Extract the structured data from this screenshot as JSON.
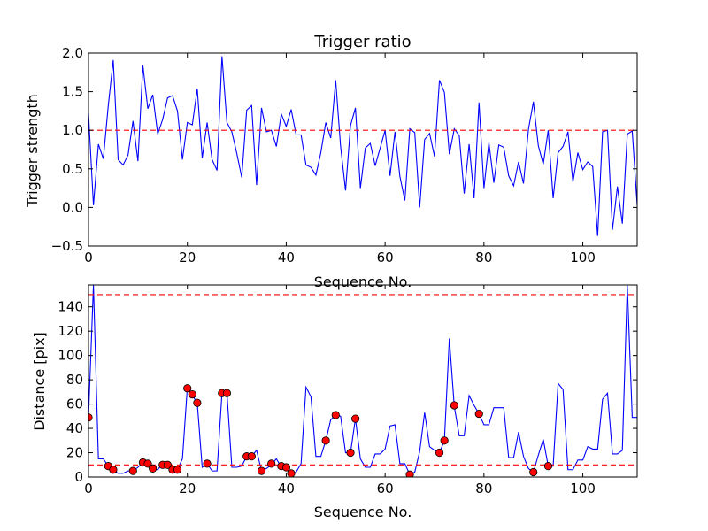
{
  "chart_data": [
    {
      "type": "line",
      "title": "Trigger ratio",
      "xlabel": "Sequence No.",
      "ylabel": "Trigger strength",
      "xlim": [
        0,
        111
      ],
      "ylim": [
        -0.5,
        2.0
      ],
      "xticks": [
        0,
        20,
        40,
        60,
        80,
        100
      ],
      "yticks": [
        -0.5,
        0.0,
        0.5,
        1.0,
        1.5,
        2.0
      ],
      "xtick_labels": [
        "0",
        "20",
        "40",
        "60",
        "80",
        "100"
      ],
      "ytick_labels": [
        "−0.5",
        "0.0",
        "0.5",
        "1.0",
        "1.5",
        "2.0"
      ],
      "grid": false,
      "series": [
        {
          "color": "#0000ff",
          "values": [
            1.22,
            0.03,
            0.82,
            0.63,
            1.32,
            1.91,
            0.62,
            0.55,
            0.68,
            1.12,
            0.6,
            1.84,
            1.28,
            1.46,
            0.95,
            1.14,
            1.42,
            1.45,
            1.25,
            0.62,
            1.1,
            1.07,
            1.54,
            0.64,
            1.1,
            0.62,
            0.48,
            1.96,
            1.1,
            0.98,
            0.7,
            0.39,
            1.26,
            1.32,
            0.29,
            1.29,
            0.98,
            1.0,
            0.79,
            1.21,
            1.05,
            1.27,
            0.94,
            0.94,
            0.55,
            0.52,
            0.42,
            0.71,
            1.1,
            0.9,
            1.65,
            0.79,
            0.22,
            1.06,
            1.29,
            0.25,
            0.77,
            0.83,
            0.54,
            0.77,
            1.0,
            0.41,
            0.98,
            0.4,
            0.09,
            1.02,
            0.97,
            0.0,
            0.88,
            0.96,
            0.66,
            1.65,
            1.49,
            0.69,
            1.02,
            0.93,
            0.18,
            0.82,
            0.12,
            1.36,
            0.25,
            0.84,
            0.32,
            0.81,
            0.78,
            0.41,
            0.28,
            0.59,
            0.31,
            1.01,
            1.37,
            0.8,
            0.56,
            1.0,
            0.12,
            0.71,
            0.79,
            0.98,
            0.33,
            0.71,
            0.49,
            0.59,
            0.53,
            -0.37,
            0.98,
            1.0,
            -0.29,
            0.27,
            -0.21,
            0.95,
            0.99,
            0.03
          ]
        }
      ],
      "reference_lines": [
        {
          "y": 1.0,
          "color": "#ff0000",
          "style": "dashed"
        }
      ]
    },
    {
      "type": "line",
      "title": "",
      "xlabel": "Sequence No.",
      "ylabel": "Distance [pix]",
      "xlim": [
        0,
        111
      ],
      "ylim": [
        0,
        158
      ],
      "xticks": [
        0,
        20,
        40,
        60,
        80,
        100
      ],
      "yticks": [
        0,
        20,
        40,
        60,
        80,
        100,
        120,
        140
      ],
      "xtick_labels": [
        "0",
        "20",
        "40",
        "60",
        "80",
        "100"
      ],
      "ytick_labels": [
        "0",
        "20",
        "40",
        "60",
        "80",
        "100",
        "120",
        "140"
      ],
      "grid": false,
      "series": [
        {
          "color": "#0000ff",
          "values": [
            49,
            158,
            15,
            15,
            9,
            6,
            3,
            3,
            5,
            5,
            8,
            12,
            10,
            7,
            6,
            11,
            11,
            6,
            6,
            15,
            74,
            67,
            61,
            8,
            11,
            5,
            5,
            69,
            69,
            8,
            8,
            9,
            17,
            17,
            22,
            5,
            7,
            10,
            15,
            8,
            8,
            2,
            4,
            11,
            74,
            66,
            17,
            17,
            30,
            47,
            51,
            50,
            20,
            20,
            48,
            15,
            8,
            8,
            19,
            19,
            23,
            42,
            43,
            11,
            11,
            2,
            4,
            21,
            53,
            25,
            22,
            20,
            30,
            114,
            58,
            34,
            34,
            67,
            59,
            52,
            43,
            43,
            57,
            57,
            57,
            16,
            16,
            37,
            17,
            7,
            4,
            18,
            31,
            9,
            9,
            77,
            72,
            6,
            6,
            14,
            14,
            25,
            23,
            23,
            64,
            69,
            19,
            19,
            22,
            158,
            49,
            49
          ]
        }
      ],
      "markers": {
        "color": "#ff0000",
        "points": [
          [
            0,
            49
          ],
          [
            4,
            9
          ],
          [
            5,
            6
          ],
          [
            9,
            5
          ],
          [
            11,
            12
          ],
          [
            12,
            11
          ],
          [
            13,
            7
          ],
          [
            15,
            10
          ],
          [
            16,
            10
          ],
          [
            17,
            6
          ],
          [
            18,
            6
          ],
          [
            20,
            73
          ],
          [
            21,
            68
          ],
          [
            22,
            61
          ],
          [
            24,
            11
          ],
          [
            27,
            69
          ],
          [
            28,
            69
          ],
          [
            32,
            17
          ],
          [
            33,
            17
          ],
          [
            35,
            5
          ],
          [
            37,
            11
          ],
          [
            39,
            9
          ],
          [
            40,
            8
          ],
          [
            41,
            3
          ],
          [
            48,
            30
          ],
          [
            50,
            51
          ],
          [
            53,
            20
          ],
          [
            54,
            48
          ],
          [
            65,
            2
          ],
          [
            71,
            20
          ],
          [
            72,
            30
          ],
          [
            74,
            59
          ],
          [
            79,
            52
          ],
          [
            90,
            4
          ],
          [
            93,
            9
          ]
        ]
      },
      "reference_lines": [
        {
          "y": 150,
          "color": "#ff0000",
          "style": "dashed"
        },
        {
          "y": 10,
          "color": "#ff0000",
          "style": "dashed"
        }
      ]
    }
  ]
}
